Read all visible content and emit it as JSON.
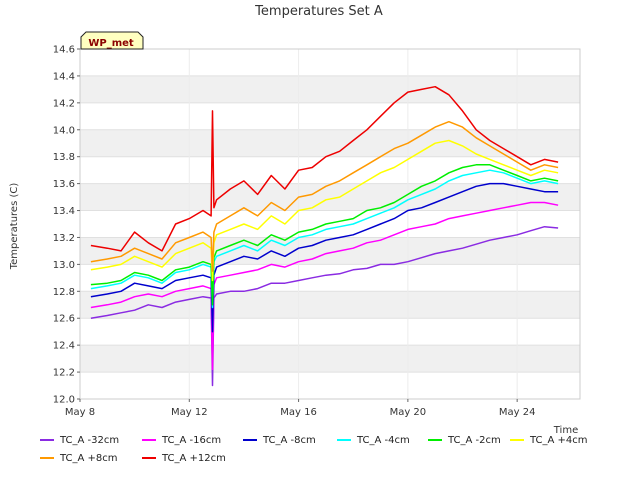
{
  "chart_data": {
    "type": "line",
    "title": "Temperatures Set A",
    "xlabel": "Time",
    "ylabel": "Temperatures (C)",
    "badge": "WP_met",
    "x_tick_labels": [
      "May 8",
      "May 12",
      "May 16",
      "May 20",
      "May 24"
    ],
    "x_tick_days": [
      8,
      12,
      16,
      20,
      24
    ],
    "xlim": [
      8,
      26.3
    ],
    "ylim": [
      12.0,
      14.6
    ],
    "y_ticks": [
      12.0,
      12.2,
      12.4,
      12.6,
      12.8,
      13.0,
      13.2,
      13.4,
      13.6,
      13.8,
      14.0,
      14.2,
      14.4,
      14.6
    ],
    "grid": "horizontal bands",
    "legend_position": "bottom",
    "x_unit": "day of May",
    "series": [
      {
        "name": "TC_A -32cm",
        "color": "#8a2be2",
        "x": [
          8.4,
          9.0,
          9.5,
          10.0,
          10.5,
          11.0,
          11.5,
          12.0,
          12.5,
          12.8,
          12.85,
          12.9,
          13.0,
          13.5,
          14.0,
          14.5,
          15.0,
          15.5,
          16.0,
          16.5,
          17.0,
          17.5,
          18.0,
          18.5,
          19.0,
          19.5,
          20.0,
          20.5,
          21.0,
          21.5,
          22.0,
          22.5,
          23.0,
          23.5,
          24.0,
          24.5,
          25.0,
          25.5
        ],
        "y": [
          12.6,
          12.62,
          12.64,
          12.66,
          12.7,
          12.68,
          12.72,
          12.74,
          12.76,
          12.75,
          12.1,
          12.75,
          12.78,
          12.8,
          12.8,
          12.82,
          12.86,
          12.86,
          12.88,
          12.9,
          12.92,
          12.93,
          12.96,
          12.97,
          13.0,
          13.0,
          13.02,
          13.05,
          13.08,
          13.1,
          13.12,
          13.15,
          13.18,
          13.2,
          13.22,
          13.25,
          13.28,
          13.27
        ]
      },
      {
        "name": "TC_A -16cm",
        "color": "#ff00ff",
        "x": [
          8.4,
          9.0,
          9.5,
          10.0,
          10.5,
          11.0,
          11.5,
          12.0,
          12.5,
          12.8,
          12.85,
          12.9,
          13.0,
          13.5,
          14.0,
          14.5,
          15.0,
          15.5,
          16.0,
          16.5,
          17.0,
          17.5,
          18.0,
          18.5,
          19.0,
          19.5,
          20.0,
          20.5,
          21.0,
          21.5,
          22.0,
          22.5,
          23.0,
          23.5,
          24.0,
          24.5,
          25.0,
          25.5
        ],
        "y": [
          12.68,
          12.7,
          12.72,
          12.76,
          12.78,
          12.76,
          12.8,
          12.82,
          12.84,
          12.82,
          12.22,
          12.85,
          12.9,
          12.92,
          12.94,
          12.96,
          13.0,
          12.98,
          13.02,
          13.04,
          13.08,
          13.1,
          13.12,
          13.16,
          13.18,
          13.22,
          13.26,
          13.28,
          13.3,
          13.34,
          13.36,
          13.38,
          13.4,
          13.42,
          13.44,
          13.46,
          13.46,
          13.44
        ]
      },
      {
        "name": "TC_A -8cm",
        "color": "#0000cd",
        "x": [
          8.4,
          9.0,
          9.5,
          10.0,
          10.5,
          11.0,
          11.5,
          12.0,
          12.5,
          12.8,
          12.85,
          12.9,
          13.0,
          13.5,
          14.0,
          14.5,
          15.0,
          15.5,
          16.0,
          16.5,
          17.0,
          17.5,
          18.0,
          18.5,
          19.0,
          19.5,
          20.0,
          20.5,
          21.0,
          21.5,
          22.0,
          22.5,
          23.0,
          23.5,
          24.0,
          24.5,
          25.0,
          25.5
        ],
        "y": [
          12.76,
          12.78,
          12.8,
          12.86,
          12.84,
          12.82,
          12.88,
          12.9,
          12.92,
          12.9,
          12.5,
          12.92,
          12.98,
          13.02,
          13.06,
          13.04,
          13.1,
          13.06,
          13.12,
          13.14,
          13.18,
          13.2,
          13.22,
          13.26,
          13.3,
          13.34,
          13.4,
          13.42,
          13.46,
          13.5,
          13.54,
          13.58,
          13.6,
          13.6,
          13.58,
          13.56,
          13.54,
          13.54
        ]
      },
      {
        "name": "TC_A -4cm",
        "color": "#00ffff",
        "x": [
          8.4,
          9.0,
          9.5,
          10.0,
          10.5,
          11.0,
          11.5,
          12.0,
          12.5,
          12.8,
          12.85,
          12.9,
          13.0,
          13.5,
          14.0,
          14.5,
          15.0,
          15.5,
          16.0,
          16.5,
          17.0,
          17.5,
          18.0,
          18.5,
          19.0,
          19.5,
          20.0,
          20.5,
          21.0,
          21.5,
          22.0,
          22.5,
          23.0,
          23.5,
          24.0,
          24.5,
          25.0,
          25.5
        ],
        "y": [
          12.82,
          12.84,
          12.86,
          12.92,
          12.9,
          12.86,
          12.94,
          12.96,
          13.0,
          12.98,
          12.68,
          13.02,
          13.06,
          13.1,
          13.14,
          13.1,
          13.18,
          13.14,
          13.2,
          13.22,
          13.26,
          13.28,
          13.3,
          13.34,
          13.38,
          13.42,
          13.48,
          13.52,
          13.56,
          13.62,
          13.66,
          13.68,
          13.7,
          13.68,
          13.64,
          13.6,
          13.62,
          13.6
        ]
      },
      {
        "name": "TC_A -2cm",
        "color": "#00ee00",
        "x": [
          8.4,
          9.0,
          9.5,
          10.0,
          10.5,
          11.0,
          11.5,
          12.0,
          12.5,
          12.8,
          12.85,
          12.9,
          13.0,
          13.5,
          14.0,
          14.5,
          15.0,
          15.5,
          16.0,
          16.5,
          17.0,
          17.5,
          18.0,
          18.5,
          19.0,
          19.5,
          20.0,
          20.5,
          21.0,
          21.5,
          22.0,
          22.5,
          23.0,
          23.5,
          24.0,
          24.5,
          25.0,
          25.5
        ],
        "y": [
          12.85,
          12.86,
          12.88,
          12.94,
          12.92,
          12.88,
          12.96,
          12.98,
          13.02,
          13.0,
          12.7,
          13.05,
          13.1,
          13.14,
          13.18,
          13.14,
          13.22,
          13.18,
          13.24,
          13.26,
          13.3,
          13.32,
          13.34,
          13.4,
          13.42,
          13.46,
          13.52,
          13.58,
          13.62,
          13.68,
          13.72,
          13.74,
          13.74,
          13.7,
          13.66,
          13.62,
          13.64,
          13.62
        ]
      },
      {
        "name": "TC_A +4cm",
        "color": "#ffff00",
        "x": [
          8.4,
          9.0,
          9.5,
          10.0,
          10.5,
          11.0,
          11.5,
          12.0,
          12.5,
          12.8,
          12.85,
          12.9,
          13.0,
          13.5,
          14.0,
          14.5,
          15.0,
          15.5,
          16.0,
          16.5,
          17.0,
          17.5,
          18.0,
          18.5,
          19.0,
          19.5,
          20.0,
          20.5,
          21.0,
          21.5,
          22.0,
          22.5,
          23.0,
          23.5,
          24.0,
          24.5,
          25.0,
          25.5
        ],
        "y": [
          12.96,
          12.98,
          13.0,
          13.06,
          13.02,
          12.98,
          13.08,
          13.12,
          13.16,
          13.12,
          12.88,
          13.16,
          13.22,
          13.26,
          13.3,
          13.26,
          13.36,
          13.3,
          13.4,
          13.42,
          13.48,
          13.5,
          13.56,
          13.62,
          13.68,
          13.72,
          13.78,
          13.84,
          13.9,
          13.92,
          13.88,
          13.82,
          13.78,
          13.74,
          13.7,
          13.66,
          13.7,
          13.68
        ]
      },
      {
        "name": "TC_A +8cm",
        "color": "#ff9900",
        "x": [
          8.4,
          9.0,
          9.5,
          10.0,
          10.5,
          11.0,
          11.5,
          12.0,
          12.5,
          12.8,
          12.85,
          12.9,
          13.0,
          13.5,
          14.0,
          14.5,
          15.0,
          15.5,
          16.0,
          16.5,
          17.0,
          17.5,
          18.0,
          18.5,
          19.0,
          19.5,
          20.0,
          20.5,
          21.0,
          21.5,
          22.0,
          22.5,
          23.0,
          23.5,
          24.0,
          24.5,
          25.0,
          25.5
        ],
        "y": [
          13.02,
          13.04,
          13.06,
          13.12,
          13.08,
          13.04,
          13.16,
          13.2,
          13.24,
          13.2,
          12.95,
          13.24,
          13.3,
          13.36,
          13.42,
          13.36,
          13.46,
          13.4,
          13.5,
          13.52,
          13.58,
          13.62,
          13.68,
          13.74,
          13.8,
          13.86,
          13.9,
          13.96,
          14.02,
          14.06,
          14.02,
          13.94,
          13.88,
          13.82,
          13.76,
          13.7,
          13.74,
          13.72
        ]
      },
      {
        "name": "TC_A +12cm",
        "color": "#ee0000",
        "x": [
          8.4,
          9.0,
          9.5,
          10.0,
          10.5,
          11.0,
          11.5,
          12.0,
          12.5,
          12.8,
          12.85,
          12.9,
          13.0,
          13.5,
          14.0,
          14.5,
          15.0,
          15.5,
          16.0,
          16.5,
          17.0,
          17.5,
          18.0,
          18.5,
          19.0,
          19.5,
          20.0,
          20.5,
          21.0,
          21.5,
          22.0,
          22.5,
          23.0,
          23.5,
          24.0,
          24.5,
          25.0,
          25.5
        ],
        "y": [
          13.14,
          13.12,
          13.1,
          13.24,
          13.16,
          13.1,
          13.3,
          13.34,
          13.4,
          13.36,
          14.14,
          13.42,
          13.48,
          13.56,
          13.62,
          13.52,
          13.66,
          13.56,
          13.7,
          13.72,
          13.8,
          13.84,
          13.92,
          14.0,
          14.1,
          14.2,
          14.28,
          14.3,
          14.32,
          14.26,
          14.14,
          14.0,
          13.92,
          13.86,
          13.8,
          13.74,
          13.78,
          13.76
        ]
      }
    ]
  }
}
